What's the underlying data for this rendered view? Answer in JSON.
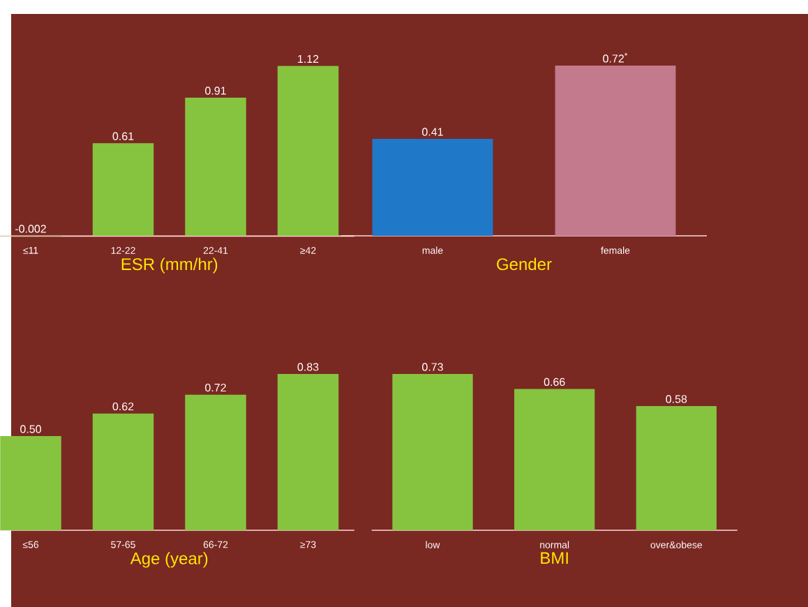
{
  "chart_data": [
    {
      "type": "bar",
      "xlabel": "ESR (mm/hr)",
      "categories": [
        "≤11",
        "12-22",
        "22-41",
        "≥42"
      ],
      "values": [
        -0.002,
        0.61,
        0.91,
        1.12
      ],
      "color": "#86c440",
      "value_labels": [
        "-0.002",
        "0.61",
        "0.91",
        "1.12"
      ]
    },
    {
      "type": "bar",
      "xlabel": "Gender",
      "categories": [
        "male",
        "female"
      ],
      "values": [
        0.41,
        0.72
      ],
      "colors": [
        "#1f78c8",
        "#c27a8c"
      ],
      "value_labels": [
        "0.41",
        "0.72$^{*}$"
      ]
    },
    {
      "type": "bar",
      "xlabel": "Age (year)",
      "categories": [
        "≤56",
        "57-65",
        "66-72",
        "≥73"
      ],
      "values": [
        0.5,
        0.62,
        0.72,
        0.83
      ],
      "color": "#86c440",
      "value_labels": [
        "0.50",
        "0.62",
        "0.72",
        "0.83"
      ]
    },
    {
      "type": "bar",
      "xlabel": "BMI",
      "categories": [
        "low",
        "normal",
        "over&obese"
      ],
      "values": [
        0.73,
        0.66,
        0.58
      ],
      "color": "#86c440",
      "value_labels": [
        "0.73",
        "0.66",
        "0.58"
      ]
    }
  ]
}
